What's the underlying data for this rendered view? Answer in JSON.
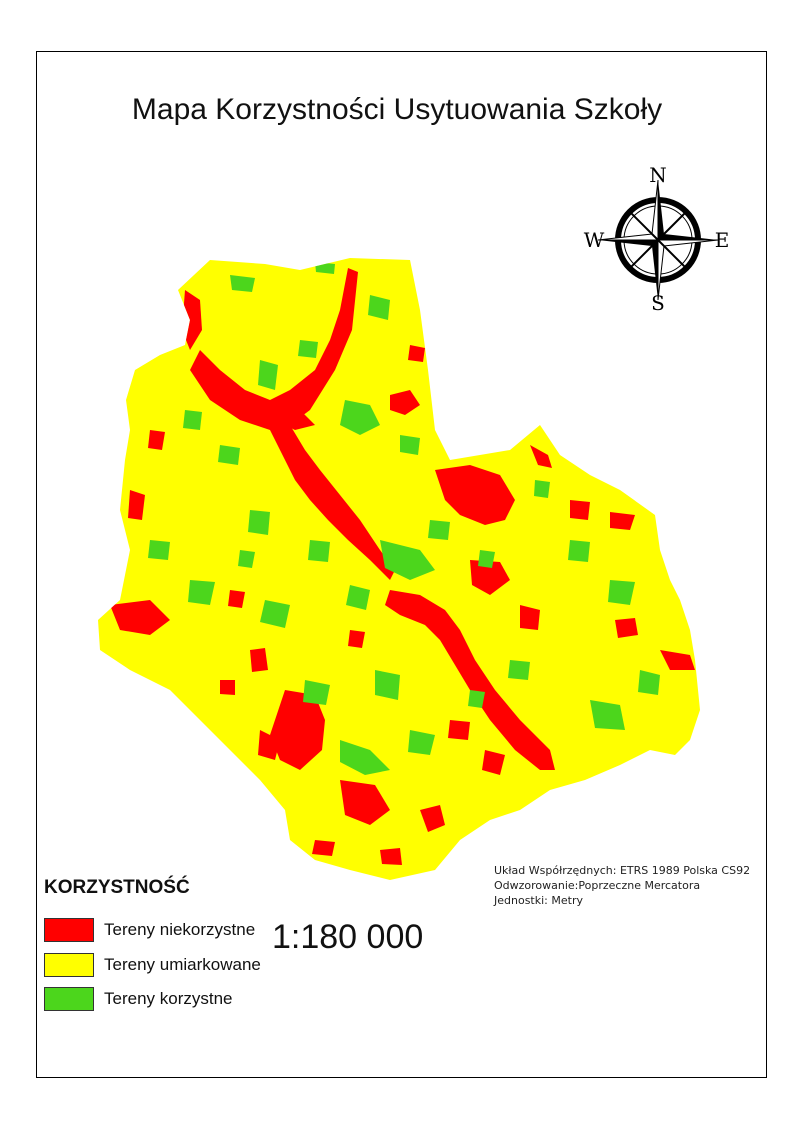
{
  "map": {
    "title": "Mapa Korzystności Usytuowania Szkoły",
    "compass": {
      "n": "N",
      "s": "S",
      "e": "E",
      "w": "W"
    },
    "legend": {
      "title": "KORZYSTNOŚĆ",
      "items": [
        {
          "label": "Tereny niekorzystne",
          "color": "#ff0000"
        },
        {
          "label": "Tereny umiarkowane",
          "color": "#ffff00"
        },
        {
          "label": "Tereny korzystne",
          "color": "#4cd61c"
        }
      ]
    },
    "scale": "1:180 000",
    "coords": {
      "system": "Układ Współrzędnych: ETRS 1989 Polska CS92",
      "projection": "Odwzorowanie:Poprzeczne Mercatora",
      "units": "Jednostki: Metry"
    },
    "colors": {
      "unfavorable": "#ff0000",
      "moderate": "#ffff00",
      "favorable": "#4cd61c"
    }
  }
}
